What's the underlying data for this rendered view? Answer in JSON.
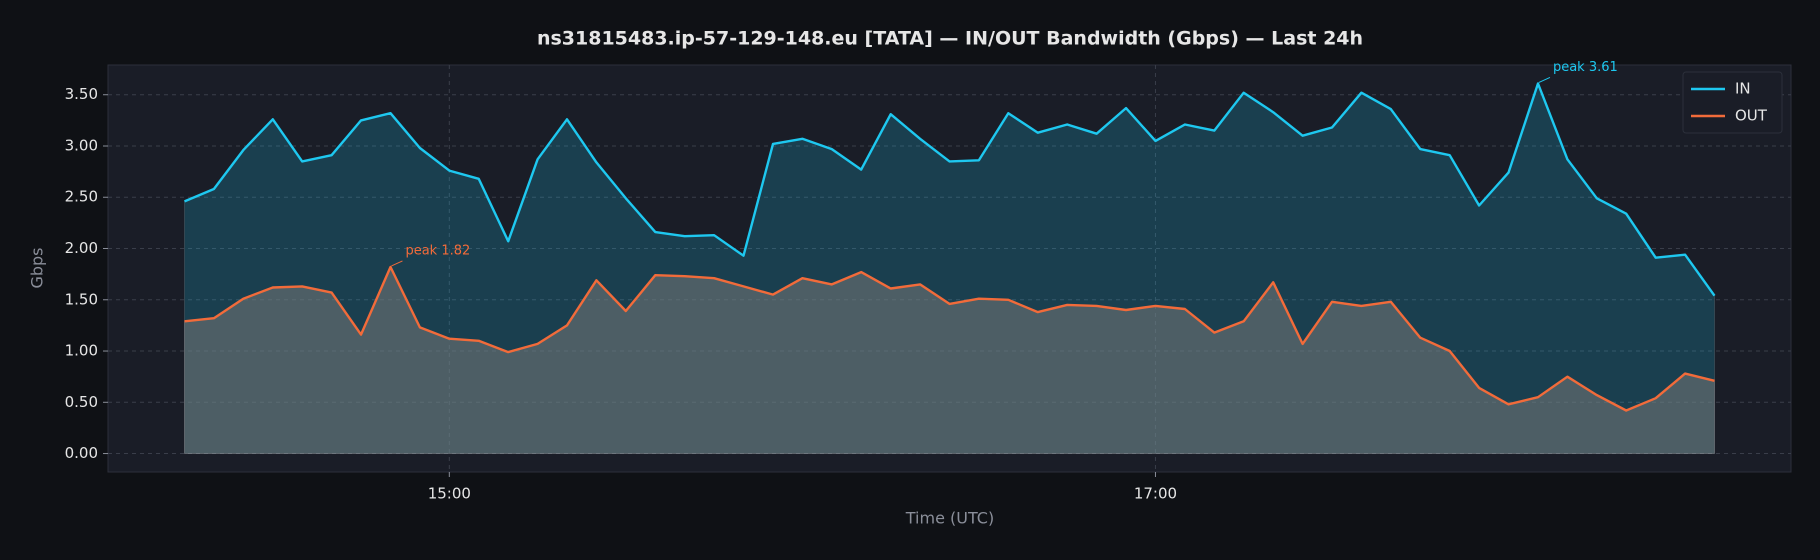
{
  "chart_data": {
    "type": "line",
    "title": "ns31815483.ip-57-129-148.eu [TATA] — IN/OUT Bandwidth (Gbps) — Last 24h",
    "xlabel": "Time (UTC)",
    "ylabel": "Gbps",
    "x": [
      "14:15",
      "14:20",
      "14:25",
      "14:30",
      "14:35",
      "14:40",
      "14:45",
      "14:50",
      "14:55",
      "15:00",
      "15:05",
      "15:10",
      "15:15",
      "15:20",
      "15:25",
      "15:30",
      "15:35",
      "15:40",
      "15:45",
      "15:50",
      "15:55",
      "16:00",
      "16:05",
      "16:10",
      "16:15",
      "16:20",
      "16:25",
      "16:30",
      "16:35",
      "16:40",
      "16:45",
      "16:50",
      "16:55",
      "17:00",
      "17:05",
      "17:10",
      "17:15",
      "17:20",
      "17:25",
      "17:30",
      "17:35",
      "17:40",
      "17:45",
      "17:50",
      "17:55",
      "18:00",
      "18:05",
      "18:10",
      "18:15",
      "18:20",
      "18:25",
      "18:30",
      "18:35"
    ],
    "series": [
      {
        "name": "IN",
        "color": "#1ec8f0",
        "annotation": "peak 3.61",
        "values": [
          2.46,
          2.58,
          2.96,
          3.26,
          2.85,
          2.91,
          3.25,
          3.32,
          2.98,
          2.76,
          2.68,
          2.07,
          2.87,
          3.26,
          2.84,
          2.49,
          2.16,
          2.12,
          2.13,
          1.93,
          3.02,
          3.07,
          2.97,
          2.77,
          3.31,
          3.07,
          2.85,
          2.86,
          3.32,
          3.13,
          3.21,
          3.12,
          3.37,
          3.05,
          3.21,
          3.15,
          3.52,
          3.33,
          3.1,
          3.18,
          3.52,
          3.36,
          2.97,
          2.91,
          2.42,
          2.74,
          3.61,
          2.87,
          2.49,
          2.34,
          1.91,
          1.94,
          1.54
        ]
      },
      {
        "name": "OUT",
        "color": "#f26b3a",
        "annotation": "peak 1.82",
        "values": [
          1.29,
          1.32,
          1.51,
          1.62,
          1.63,
          1.57,
          1.16,
          1.82,
          1.23,
          1.12,
          1.1,
          0.99,
          1.07,
          1.25,
          1.69,
          1.39,
          1.74,
          1.73,
          1.71,
          1.63,
          1.55,
          1.71,
          1.65,
          1.77,
          1.61,
          1.65,
          1.46,
          1.51,
          1.5,
          1.38,
          1.45,
          1.44,
          1.4,
          1.44,
          1.41,
          1.18,
          1.29,
          1.67,
          1.07,
          1.48,
          1.44,
          1.48,
          1.13,
          1.0,
          0.64,
          0.48,
          0.55,
          0.75,
          0.57,
          0.42,
          0.54,
          0.78,
          0.71
        ]
      }
    ],
    "xlim": [
      "14:02",
      "18:48"
    ],
    "xticks": [
      "15:00",
      "17:00"
    ],
    "ylim": [
      -0.18,
      3.79
    ],
    "yticks": [
      {
        "value": 0,
        "label": "0.00"
      },
      {
        "value": 0.5,
        "label": "0.50"
      },
      {
        "value": 1,
        "label": "1.00"
      },
      {
        "value": 1.5,
        "label": "1.50"
      },
      {
        "value": 2,
        "label": "2.00"
      },
      {
        "value": 2.5,
        "label": "2.50"
      },
      {
        "value": 3,
        "label": "3.00"
      },
      {
        "value": 3.5,
        "label": "3.50"
      }
    ],
    "grid": true,
    "legend": "upper right"
  }
}
